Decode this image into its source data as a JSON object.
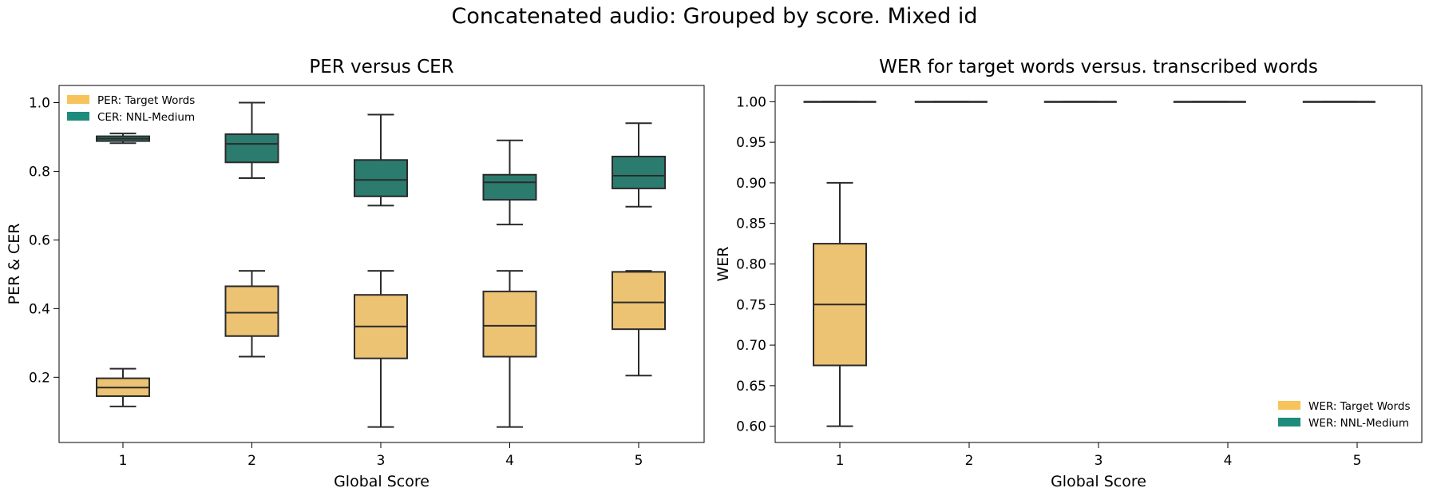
{
  "figure": {
    "title": "Concatenated audio: Grouped by score. Mixed id"
  },
  "colors": {
    "target": "#ECC273",
    "nnl": "#2B7B6E",
    "legend_target": "#F7C35B",
    "legend_nnl": "#1E8C7C",
    "line": "#2b2b2b"
  },
  "chart_data": [
    {
      "type": "box",
      "title": "PER versus CER",
      "xlabel": "Global Score",
      "ylabel": "PER & CER",
      "categories": [
        "1",
        "2",
        "3",
        "4",
        "5"
      ],
      "ylim": [
        0.01,
        1.05
      ],
      "yticks": [
        0.2,
        0.4,
        0.6,
        0.8,
        1.0
      ],
      "ytick_labels": [
        "0.2",
        "0.4",
        "0.6",
        "0.8",
        "1.0"
      ],
      "legend_position": "upper-left",
      "series": [
        {
          "name": "PER: Target Words",
          "color_key": "target",
          "boxes": [
            {
              "min": 0.115,
              "q1": 0.145,
              "median": 0.17,
              "q3": 0.197,
              "max": 0.225
            },
            {
              "min": 0.26,
              "q1": 0.32,
              "median": 0.388,
              "q3": 0.465,
              "max": 0.51
            },
            {
              "min": 0.055,
              "q1": 0.255,
              "median": 0.348,
              "q3": 0.44,
              "max": 0.51
            },
            {
              "min": 0.055,
              "q1": 0.26,
              "median": 0.35,
              "q3": 0.45,
              "max": 0.51
            },
            {
              "min": 0.205,
              "q1": 0.34,
              "median": 0.418,
              "q3": 0.507,
              "max": 0.51
            }
          ]
        },
        {
          "name": "CER: NNL-Medium",
          "color_key": "nnl",
          "boxes": [
            {
              "min": 0.882,
              "q1": 0.888,
              "median": 0.895,
              "q3": 0.902,
              "max": 0.91
            },
            {
              "min": 0.78,
              "q1": 0.826,
              "median": 0.88,
              "q3": 0.908,
              "max": 1.0
            },
            {
              "min": 0.7,
              "q1": 0.727,
              "median": 0.775,
              "q3": 0.833,
              "max": 0.965
            },
            {
              "min": 0.645,
              "q1": 0.717,
              "median": 0.768,
              "q3": 0.79,
              "max": 0.89
            },
            {
              "min": 0.697,
              "q1": 0.75,
              "median": 0.787,
              "q3": 0.843,
              "max": 0.94
            }
          ]
        }
      ]
    },
    {
      "type": "box",
      "title": "WER for target words versus. transcribed words",
      "xlabel": "Global Score",
      "ylabel": "WER",
      "categories": [
        "1",
        "2",
        "3",
        "4",
        "5"
      ],
      "ylim": [
        0.58,
        1.02
      ],
      "yticks": [
        0.6,
        0.65,
        0.7,
        0.75,
        0.8,
        0.85,
        0.9,
        0.95,
        1.0
      ],
      "ytick_labels": [
        "0.60",
        "0.65",
        "0.70",
        "0.75",
        "0.80",
        "0.85",
        "0.90",
        "0.95",
        "1.00"
      ],
      "legend_position": "lower-right",
      "series": [
        {
          "name": "WER: Target Words",
          "color_key": "target",
          "boxes": [
            {
              "min": 0.6,
              "q1": 0.675,
              "median": 0.75,
              "q3": 0.825,
              "max": 0.9
            },
            null,
            null,
            null,
            null
          ]
        },
        {
          "name": "WER: NNL-Medium",
          "color_key": "nnl",
          "boxes": [
            {
              "min": 1.0,
              "q1": 1.0,
              "median": 1.0,
              "q3": 1.0,
              "max": 1.0
            },
            {
              "min": 1.0,
              "q1": 1.0,
              "median": 1.0,
              "q3": 1.0,
              "max": 1.0
            },
            {
              "min": 1.0,
              "q1": 1.0,
              "median": 1.0,
              "q3": 1.0,
              "max": 1.0
            },
            {
              "min": 1.0,
              "q1": 1.0,
              "median": 1.0,
              "q3": 1.0,
              "max": 1.0
            },
            {
              "min": 1.0,
              "q1": 1.0,
              "median": 1.0,
              "q3": 1.0,
              "max": 1.0
            }
          ]
        }
      ]
    }
  ]
}
